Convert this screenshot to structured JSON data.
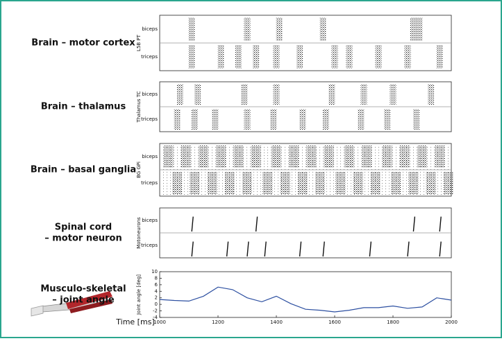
{
  "chart_data": [
    {
      "type": "raster",
      "label": [
        "Brain – motor cortex"
      ],
      "ylabel": "L5B PT",
      "xlim": [
        1000,
        2000
      ],
      "series": [
        {
          "name": "biceps",
          "x": [
            1110,
            1300,
            1410,
            1560,
            1870,
            1890
          ]
        },
        {
          "name": "triceps",
          "x": [
            1110,
            1210,
            1270,
            1330,
            1400,
            1480,
            1600,
            1650,
            1750,
            1850,
            1960
          ]
        }
      ]
    },
    {
      "type": "raster",
      "label": [
        "Brain – thalamus"
      ],
      "ylabel": "Thalamus TC",
      "xlim": [
        1000,
        2000
      ],
      "series": [
        {
          "name": "biceps",
          "x": [
            1070,
            1130,
            1290,
            1400,
            1590,
            1700,
            1800,
            1930
          ]
        },
        {
          "name": "triceps",
          "x": [
            1060,
            1120,
            1190,
            1300,
            1390,
            1490,
            1570,
            1690,
            1780,
            1880
          ]
        }
      ]
    },
    {
      "type": "raster",
      "label": [
        "Brain – basal ganglia"
      ],
      "ylabel": "BG GPi",
      "xlim": [
        1000,
        2000
      ],
      "series": [
        {
          "name": "biceps",
          "x": [
            1030,
            1090,
            1150,
            1210,
            1270,
            1330,
            1400,
            1460,
            1520,
            1580,
            1650,
            1710,
            1780,
            1840,
            1900,
            1960
          ]
        },
        {
          "name": "triceps",
          "x": [
            1060,
            1120,
            1180,
            1240,
            1300,
            1370,
            1430,
            1490,
            1550,
            1620,
            1680,
            1740,
            1810,
            1870,
            1930,
            1990
          ]
        }
      ]
    },
    {
      "type": "spikes",
      "label": [
        "Spinal cord",
        "– motor neuron"
      ],
      "ylabel": "Motoneurons",
      "xlim": [
        1000,
        2000
      ],
      "series": [
        {
          "name": "biceps",
          "x": [
            1110,
            1330,
            1870,
            1960
          ]
        },
        {
          "name": "triceps",
          "x": [
            1110,
            1230,
            1300,
            1360,
            1480,
            1560,
            1720,
            1850,
            1960
          ]
        }
      ]
    },
    {
      "type": "line",
      "label": [
        "Musculo-skeletal",
        "– joint angle"
      ],
      "ylabel": "Joint angle [deg]",
      "xlabel": "Time [ms]",
      "color": "#2b4ea0",
      "xlim": [
        1000,
        2000
      ],
      "xticks": [
        1000,
        1200,
        1400,
        1600,
        1800,
        2000
      ],
      "ylim": [
        -4,
        10
      ],
      "yticks": [
        -4,
        -2,
        0,
        2,
        4,
        6,
        8,
        10
      ],
      "x": [
        1000,
        1050,
        1100,
        1150,
        1200,
        1250,
        1300,
        1350,
        1400,
        1450,
        1500,
        1550,
        1600,
        1650,
        1700,
        1750,
        1800,
        1850,
        1900,
        1950,
        2000
      ],
      "values": [
        1.5,
        1.2,
        1.0,
        2.5,
        5.3,
        4.5,
        2.0,
        0.8,
        2.5,
        0.2,
        -1.5,
        -1.8,
        -2.3,
        -1.8,
        -1.0,
        -1.0,
        -0.5,
        -1.2,
        -0.8,
        2.0,
        1.3
      ]
    }
  ]
}
